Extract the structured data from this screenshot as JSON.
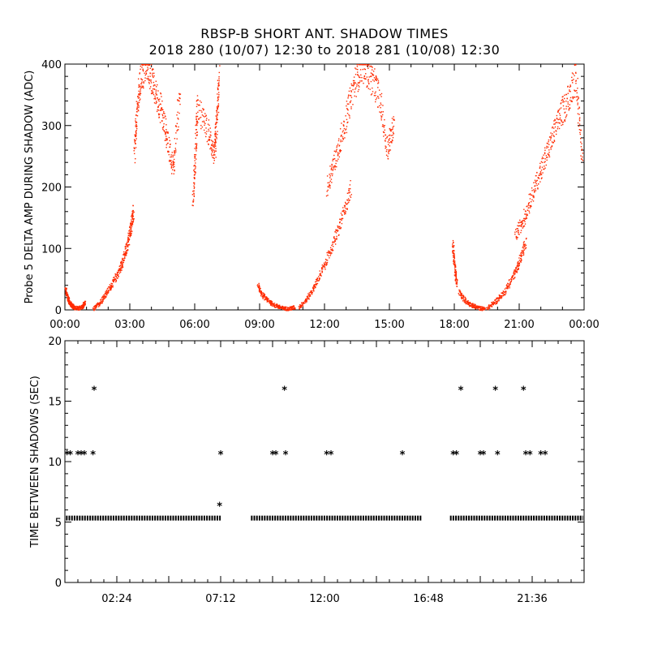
{
  "title": "RBSP-B SHORT ANT. SHADOW TIMES",
  "subtitle": "2018 280 (10/07) 12:30 to 2018 281 (10/08) 12:30",
  "chart_data": [
    {
      "type": "scatter",
      "ylabel": "Probe 5 DELTA AMP DURING SHADOW (ADC)",
      "xlabel": "",
      "xlim": [
        0,
        24
      ],
      "ylim": [
        0,
        400
      ],
      "x_ticks": [
        "00:00",
        "03:00",
        "06:00",
        "09:00",
        "12:00",
        "15:00",
        "18:00",
        "21:00",
        "00:00"
      ],
      "y_ticks": [
        "0",
        "100",
        "200",
        "300",
        "400"
      ],
      "marker": "dot",
      "color": "#ff2a00",
      "segments": [
        {
          "x": [
            0.0,
            0.1,
            0.2,
            0.3,
            0.4,
            0.6,
            0.8,
            0.9
          ],
          "y": [
            35,
            22,
            12,
            8,
            5,
            3,
            6,
            12
          ]
        },
        {
          "x": [
            1.3,
            1.6,
            1.9,
            2.2,
            2.5,
            2.7,
            2.9,
            3.05,
            3.15
          ],
          "y": [
            2,
            12,
            28,
            45,
            65,
            85,
            110,
            140,
            160
          ]
        },
        {
          "x": [
            3.2,
            3.3,
            3.5,
            3.8,
            4.1,
            4.4,
            4.7,
            5.0,
            5.3
          ],
          "y": [
            250,
            320,
            380,
            400,
            360,
            330,
            280,
            230,
            360
          ]
        },
        {
          "x": [
            5.9,
            6.0,
            6.1,
            6.6,
            6.9,
            7.0,
            7.1
          ],
          "y": [
            180,
            250,
            330,
            290,
            250,
            310,
            380
          ]
        },
        {
          "x": [
            8.9,
            9.1,
            9.4,
            9.7,
            10.0,
            10.3,
            10.6
          ],
          "y": [
            40,
            25,
            15,
            8,
            4,
            2,
            5
          ]
        },
        {
          "x": [
            10.8,
            11.2,
            11.6,
            12.0,
            12.4,
            12.8,
            13.2
          ],
          "y": [
            5,
            20,
            45,
            75,
            110,
            150,
            200
          ]
        },
        {
          "x": [
            12.1,
            12.5,
            12.9,
            13.3,
            13.7,
            14.1,
            14.5,
            14.9,
            15.2
          ],
          "y": [
            200,
            250,
            300,
            360,
            400,
            380,
            350,
            260,
            310
          ]
        },
        {
          "x": [
            17.9,
            18.0,
            18.1
          ],
          "y": [
            110,
            70,
            40
          ]
        },
        {
          "x": [
            18.2,
            18.5,
            18.8,
            19.1,
            19.4
          ],
          "y": [
            30,
            15,
            8,
            4,
            2
          ]
        },
        {
          "x": [
            19.5,
            19.9,
            20.3,
            20.7,
            21.0,
            21.3
          ],
          "y": [
            3,
            15,
            30,
            55,
            80,
            110
          ]
        },
        {
          "x": [
            20.8,
            21.2,
            21.6,
            22.0,
            22.4,
            22.8,
            23.2,
            23.6,
            23.9
          ],
          "y": [
            120,
            150,
            190,
            230,
            270,
            310,
            340,
            380,
            250
          ]
        }
      ]
    },
    {
      "type": "scatter",
      "ylabel": "TIME BETWEEN SHADOWS (SEC)",
      "xlabel": "",
      "xlim": [
        0,
        24
      ],
      "ylim": [
        0,
        20
      ],
      "x_ticks": [
        "02:24",
        "07:12",
        "12:00",
        "16:48",
        "21:36"
      ],
      "y_ticks": [
        "0",
        "5",
        "10",
        "15",
        "20"
      ],
      "marker": "*",
      "color": "#000000",
      "baseline": {
        "y": 5.33,
        "ranges": [
          [
            0.05,
            7.2
          ],
          [
            8.6,
            16.5
          ],
          [
            17.8,
            23.95
          ]
        ]
      },
      "points": {
        "x": [
          0.1,
          0.25,
          0.6,
          0.75,
          0.9,
          1.3,
          1.35,
          7.15,
          7.2,
          9.6,
          9.75,
          10.15,
          10.2,
          12.1,
          12.3,
          15.6,
          17.95,
          18.1,
          18.3,
          19.2,
          19.35,
          19.9,
          20.0,
          21.2,
          21.3,
          21.5,
          22.0,
          22.2
        ],
        "y": [
          10.67,
          10.67,
          10.67,
          10.67,
          10.67,
          10.67,
          16.0,
          6.4,
          10.67,
          10.67,
          10.67,
          16.0,
          10.67,
          10.67,
          10.67,
          10.67,
          10.67,
          10.67,
          16.0,
          10.67,
          10.67,
          16.0,
          10.67,
          16.0,
          10.67,
          10.67,
          10.67,
          10.67
        ]
      }
    }
  ]
}
